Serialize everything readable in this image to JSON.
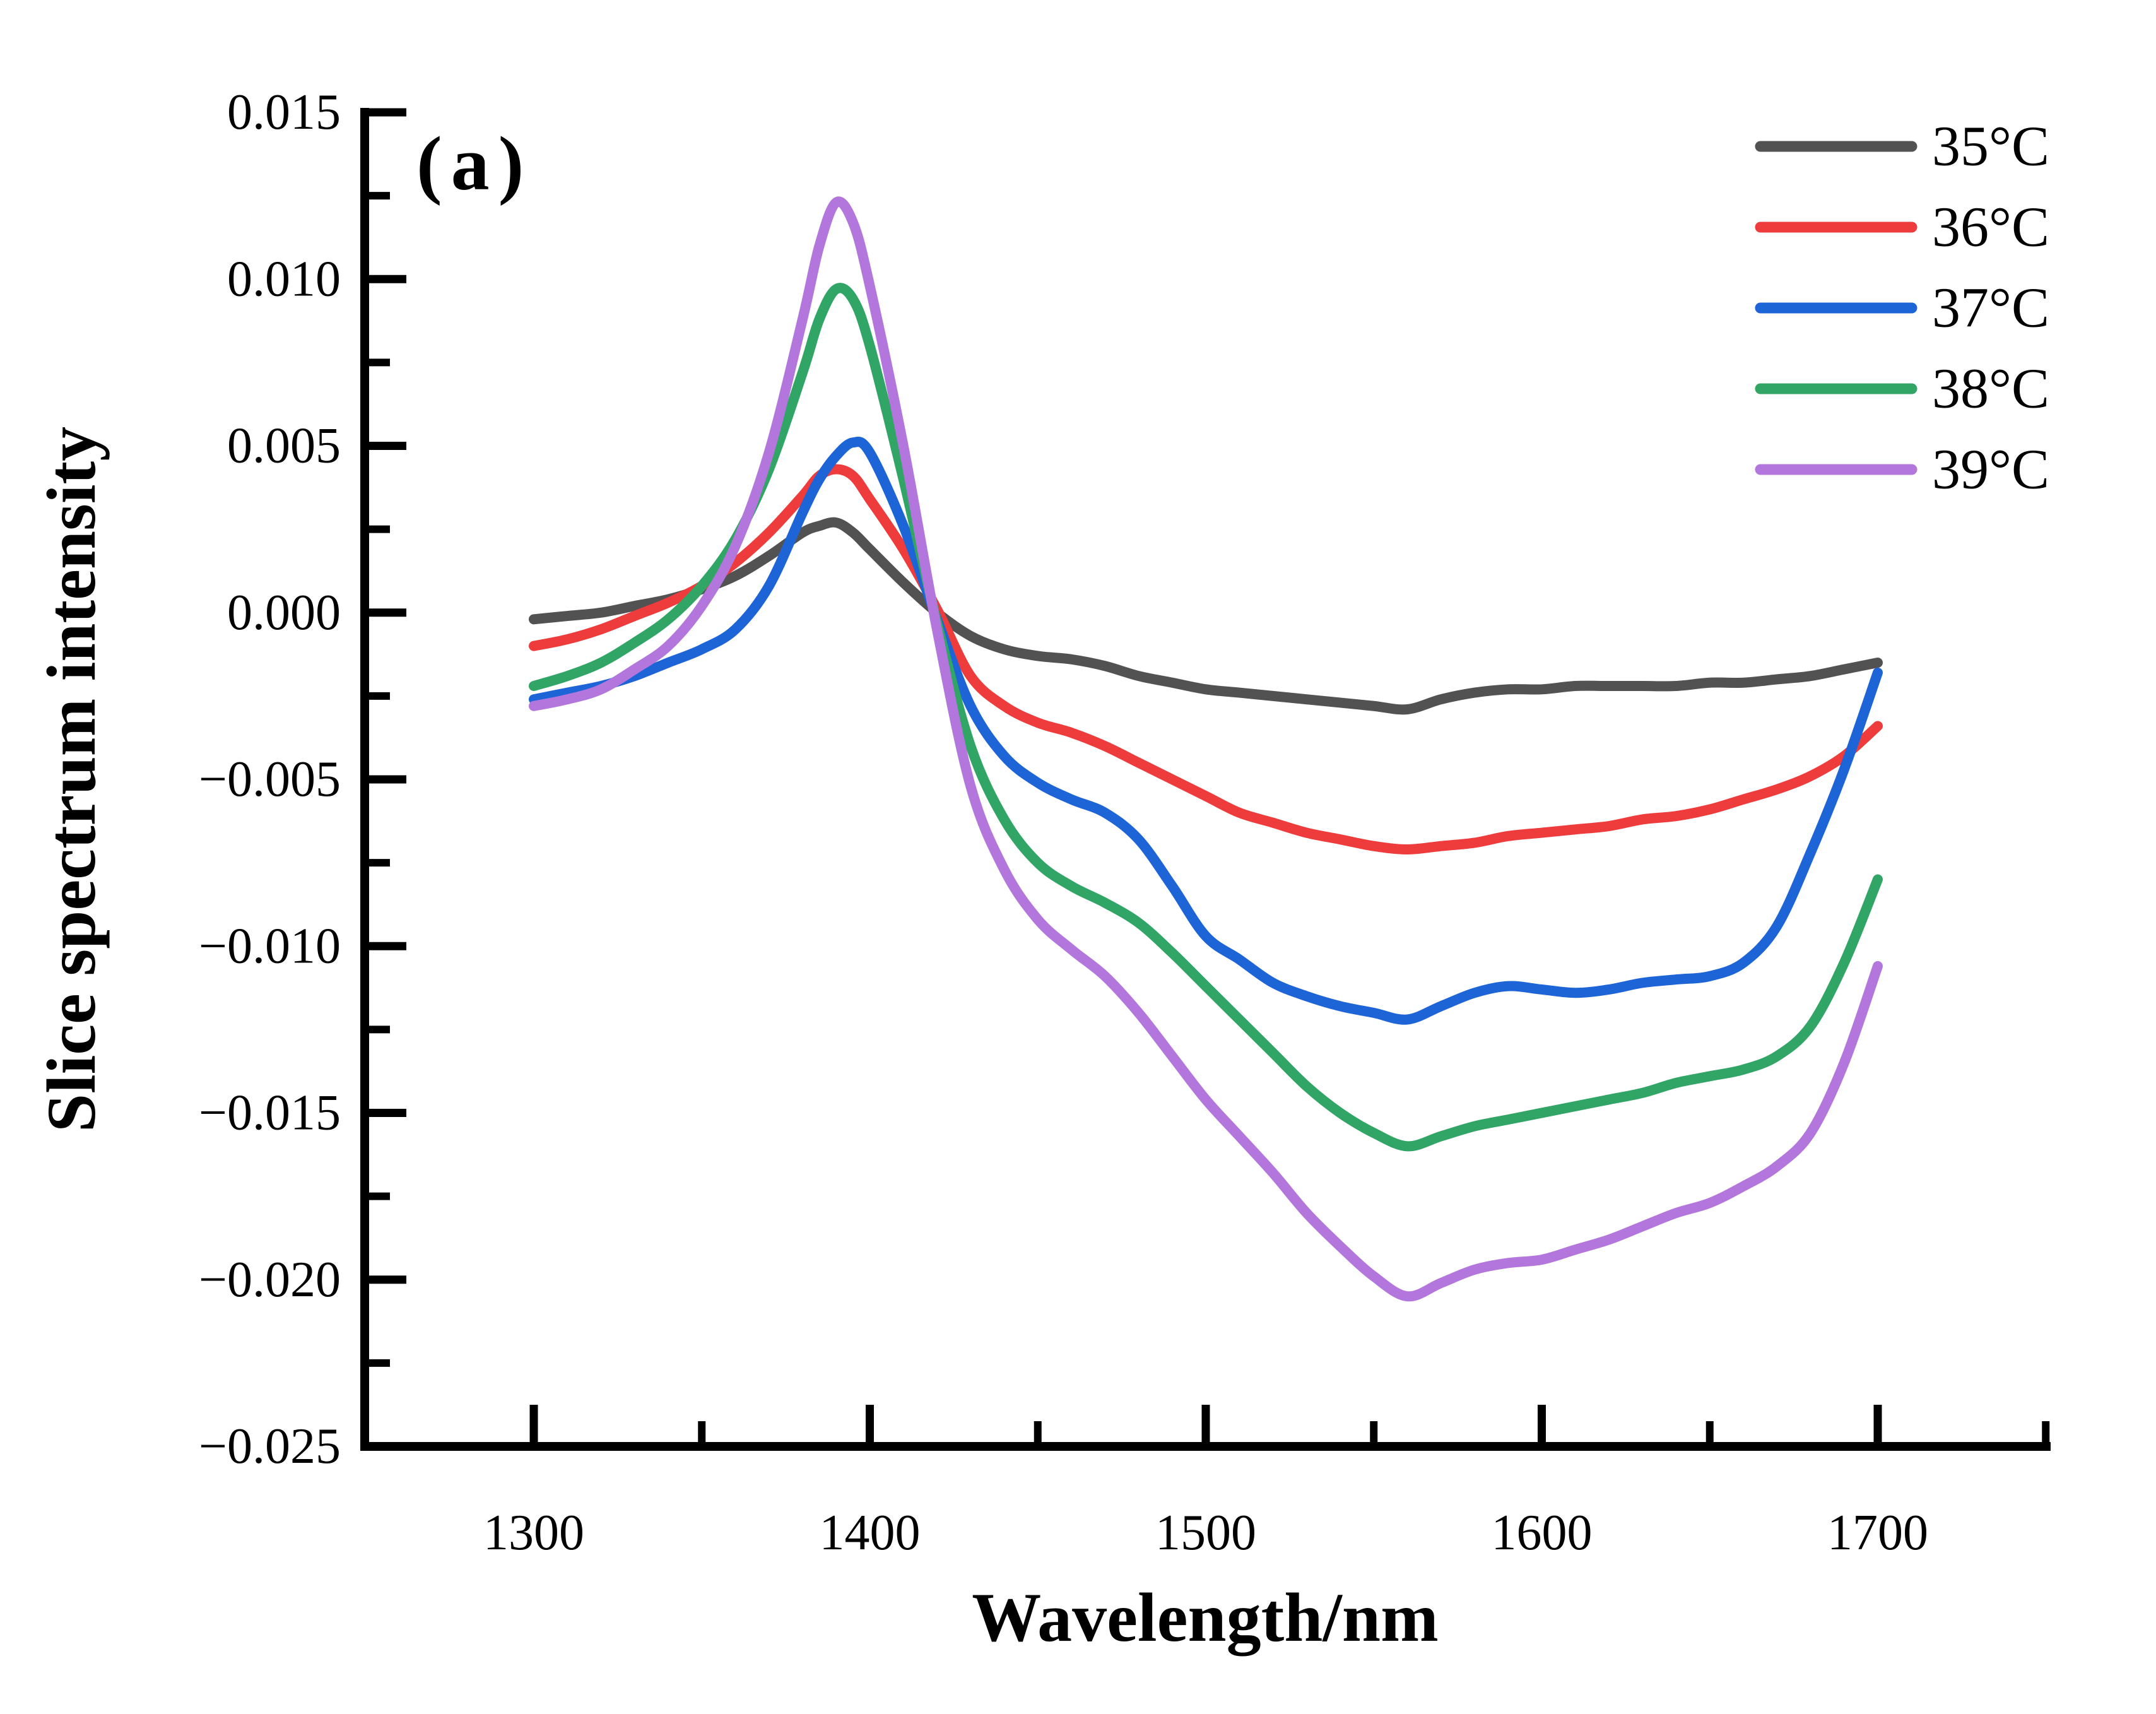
{
  "figure_label": "(a)",
  "axes": {
    "x": {
      "title": "Wavelength/nm",
      "major_ticks": [
        1300,
        1400,
        1500,
        1600,
        1700
      ],
      "major_tick_labels": [
        "1300",
        "1400",
        "1500",
        "1600",
        "1700"
      ],
      "minor_ticks": [
        1350,
        1450,
        1550,
        1650,
        1750
      ]
    },
    "y": {
      "title": "Slice spectrum intensity",
      "major_ticks": [
        0.015,
        0.01,
        0.005,
        0.0,
        -0.005,
        -0.01,
        -0.015,
        -0.02,
        -0.025
      ],
      "major_tick_labels": [
        "0.015",
        "0.010",
        "0.005",
        "0.000",
        "−0.005",
        "−0.010",
        "−0.015",
        "−0.020",
        "−0.025"
      ],
      "minor_ticks": [
        0.0125,
        0.0075,
        0.0025,
        -0.0025,
        -0.0075,
        -0.0125,
        -0.0175,
        -0.0225
      ]
    }
  },
  "legend": {
    "position": "top-right",
    "items": [
      {
        "label": "35°C",
        "color": "#525252"
      },
      {
        "label": "36°C",
        "color": "#ee3b3b"
      },
      {
        "label": "37°C",
        "color": "#1d64d6"
      },
      {
        "label": "38°C",
        "color": "#31a565"
      },
      {
        "label": "39°C",
        "color": "#b376dc"
      }
    ]
  },
  "chart_data": {
    "type": "line",
    "title": "(a)",
    "xlabel": "Wavelength/nm",
    "ylabel": "Slice spectrum intensity",
    "xlim": [
      1249,
      1751
    ],
    "ylim": [
      -0.025,
      0.015
    ],
    "grid": false,
    "legend_position": "top-right",
    "x": [
      1300,
      1310,
      1320,
      1330,
      1340,
      1350,
      1360,
      1370,
      1380,
      1385,
      1390,
      1395,
      1400,
      1410,
      1420,
      1430,
      1440,
      1450,
      1460,
      1470,
      1480,
      1490,
      1500,
      1510,
      1520,
      1530,
      1540,
      1550,
      1560,
      1570,
      1580,
      1590,
      1600,
      1610,
      1620,
      1630,
      1640,
      1650,
      1660,
      1670,
      1680,
      1690,
      1700
    ],
    "series": [
      {
        "name": "35°C",
        "color": "#525252",
        "values": [
          -0.0002,
          -0.0001,
          0.0,
          0.0002,
          0.0004,
          0.0007,
          0.0011,
          0.0017,
          0.0024,
          0.0026,
          0.0027,
          0.0024,
          0.0019,
          0.0009,
          0.0,
          -0.0007,
          -0.0011,
          -0.0013,
          -0.0014,
          -0.0016,
          -0.0019,
          -0.0021,
          -0.0023,
          -0.0024,
          -0.0025,
          -0.0026,
          -0.0027,
          -0.0028,
          -0.0029,
          -0.0026,
          -0.0024,
          -0.0023,
          -0.0023,
          -0.0022,
          -0.0022,
          -0.0022,
          -0.0022,
          -0.0021,
          -0.0021,
          -0.002,
          -0.0019,
          -0.0017,
          -0.0015
        ]
      },
      {
        "name": "36°C",
        "color": "#ee3b3b",
        "values": [
          -0.001,
          -0.0008,
          -0.0005,
          -0.0001,
          0.0003,
          0.0008,
          0.0015,
          0.0024,
          0.0035,
          0.0041,
          0.0043,
          0.0041,
          0.0034,
          0.0019,
          0.0001,
          -0.0019,
          -0.0028,
          -0.0033,
          -0.0036,
          -0.004,
          -0.0045,
          -0.005,
          -0.0055,
          -0.006,
          -0.0063,
          -0.0066,
          -0.0068,
          -0.007,
          -0.0071,
          -0.007,
          -0.0069,
          -0.0067,
          -0.0066,
          -0.0065,
          -0.0064,
          -0.0062,
          -0.0061,
          -0.0059,
          -0.0056,
          -0.0053,
          -0.0049,
          -0.0043,
          -0.0034
        ]
      },
      {
        "name": "37°C",
        "color": "#1d64d6",
        "values": [
          -0.0026,
          -0.0024,
          -0.0022,
          -0.0019,
          -0.0015,
          -0.0011,
          -0.0005,
          0.0008,
          0.003,
          0.004,
          0.0047,
          0.0051,
          0.0048,
          0.0026,
          -0.0002,
          -0.0028,
          -0.0043,
          -0.0051,
          -0.0056,
          -0.006,
          -0.0068,
          -0.0082,
          -0.0097,
          -0.0104,
          -0.0111,
          -0.0115,
          -0.0118,
          -0.012,
          -0.0122,
          -0.0118,
          -0.0114,
          -0.0112,
          -0.0113,
          -0.0114,
          -0.0113,
          -0.0111,
          -0.011,
          -0.0109,
          -0.0105,
          -0.0094,
          -0.0072,
          -0.0047,
          -0.0018
        ]
      },
      {
        "name": "38°C",
        "color": "#31a565",
        "values": [
          -0.0022,
          -0.0019,
          -0.0015,
          -0.0009,
          -0.0002,
          0.0008,
          0.0022,
          0.0043,
          0.0072,
          0.0088,
          0.0097,
          0.0094,
          0.008,
          0.004,
          -0.0003,
          -0.004,
          -0.0062,
          -0.0075,
          -0.0082,
          -0.0087,
          -0.0093,
          -0.0102,
          -0.0112,
          -0.0122,
          -0.0132,
          -0.0142,
          -0.015,
          -0.0156,
          -0.016,
          -0.0157,
          -0.0154,
          -0.0152,
          -0.015,
          -0.0148,
          -0.0146,
          -0.0144,
          -0.0141,
          -0.0139,
          -0.0137,
          -0.0133,
          -0.0124,
          -0.0105,
          -0.008
        ]
      },
      {
        "name": "39°C",
        "color": "#b376dc",
        "values": [
          -0.0028,
          -0.0026,
          -0.0023,
          -0.0017,
          -0.001,
          0.0002,
          0.002,
          0.0048,
          0.0088,
          0.011,
          0.0123,
          0.0117,
          0.0098,
          0.005,
          -0.0005,
          -0.0052,
          -0.0077,
          -0.0092,
          -0.0101,
          -0.0109,
          -0.012,
          -0.0133,
          -0.0146,
          -0.0157,
          -0.0168,
          -0.018,
          -0.019,
          -0.0199,
          -0.0205,
          -0.0201,
          -0.0197,
          -0.0195,
          -0.0194,
          -0.0191,
          -0.0188,
          -0.0184,
          -0.018,
          -0.0177,
          -0.0172,
          -0.0166,
          -0.0156,
          -0.0135,
          -0.0106
        ]
      }
    ]
  }
}
